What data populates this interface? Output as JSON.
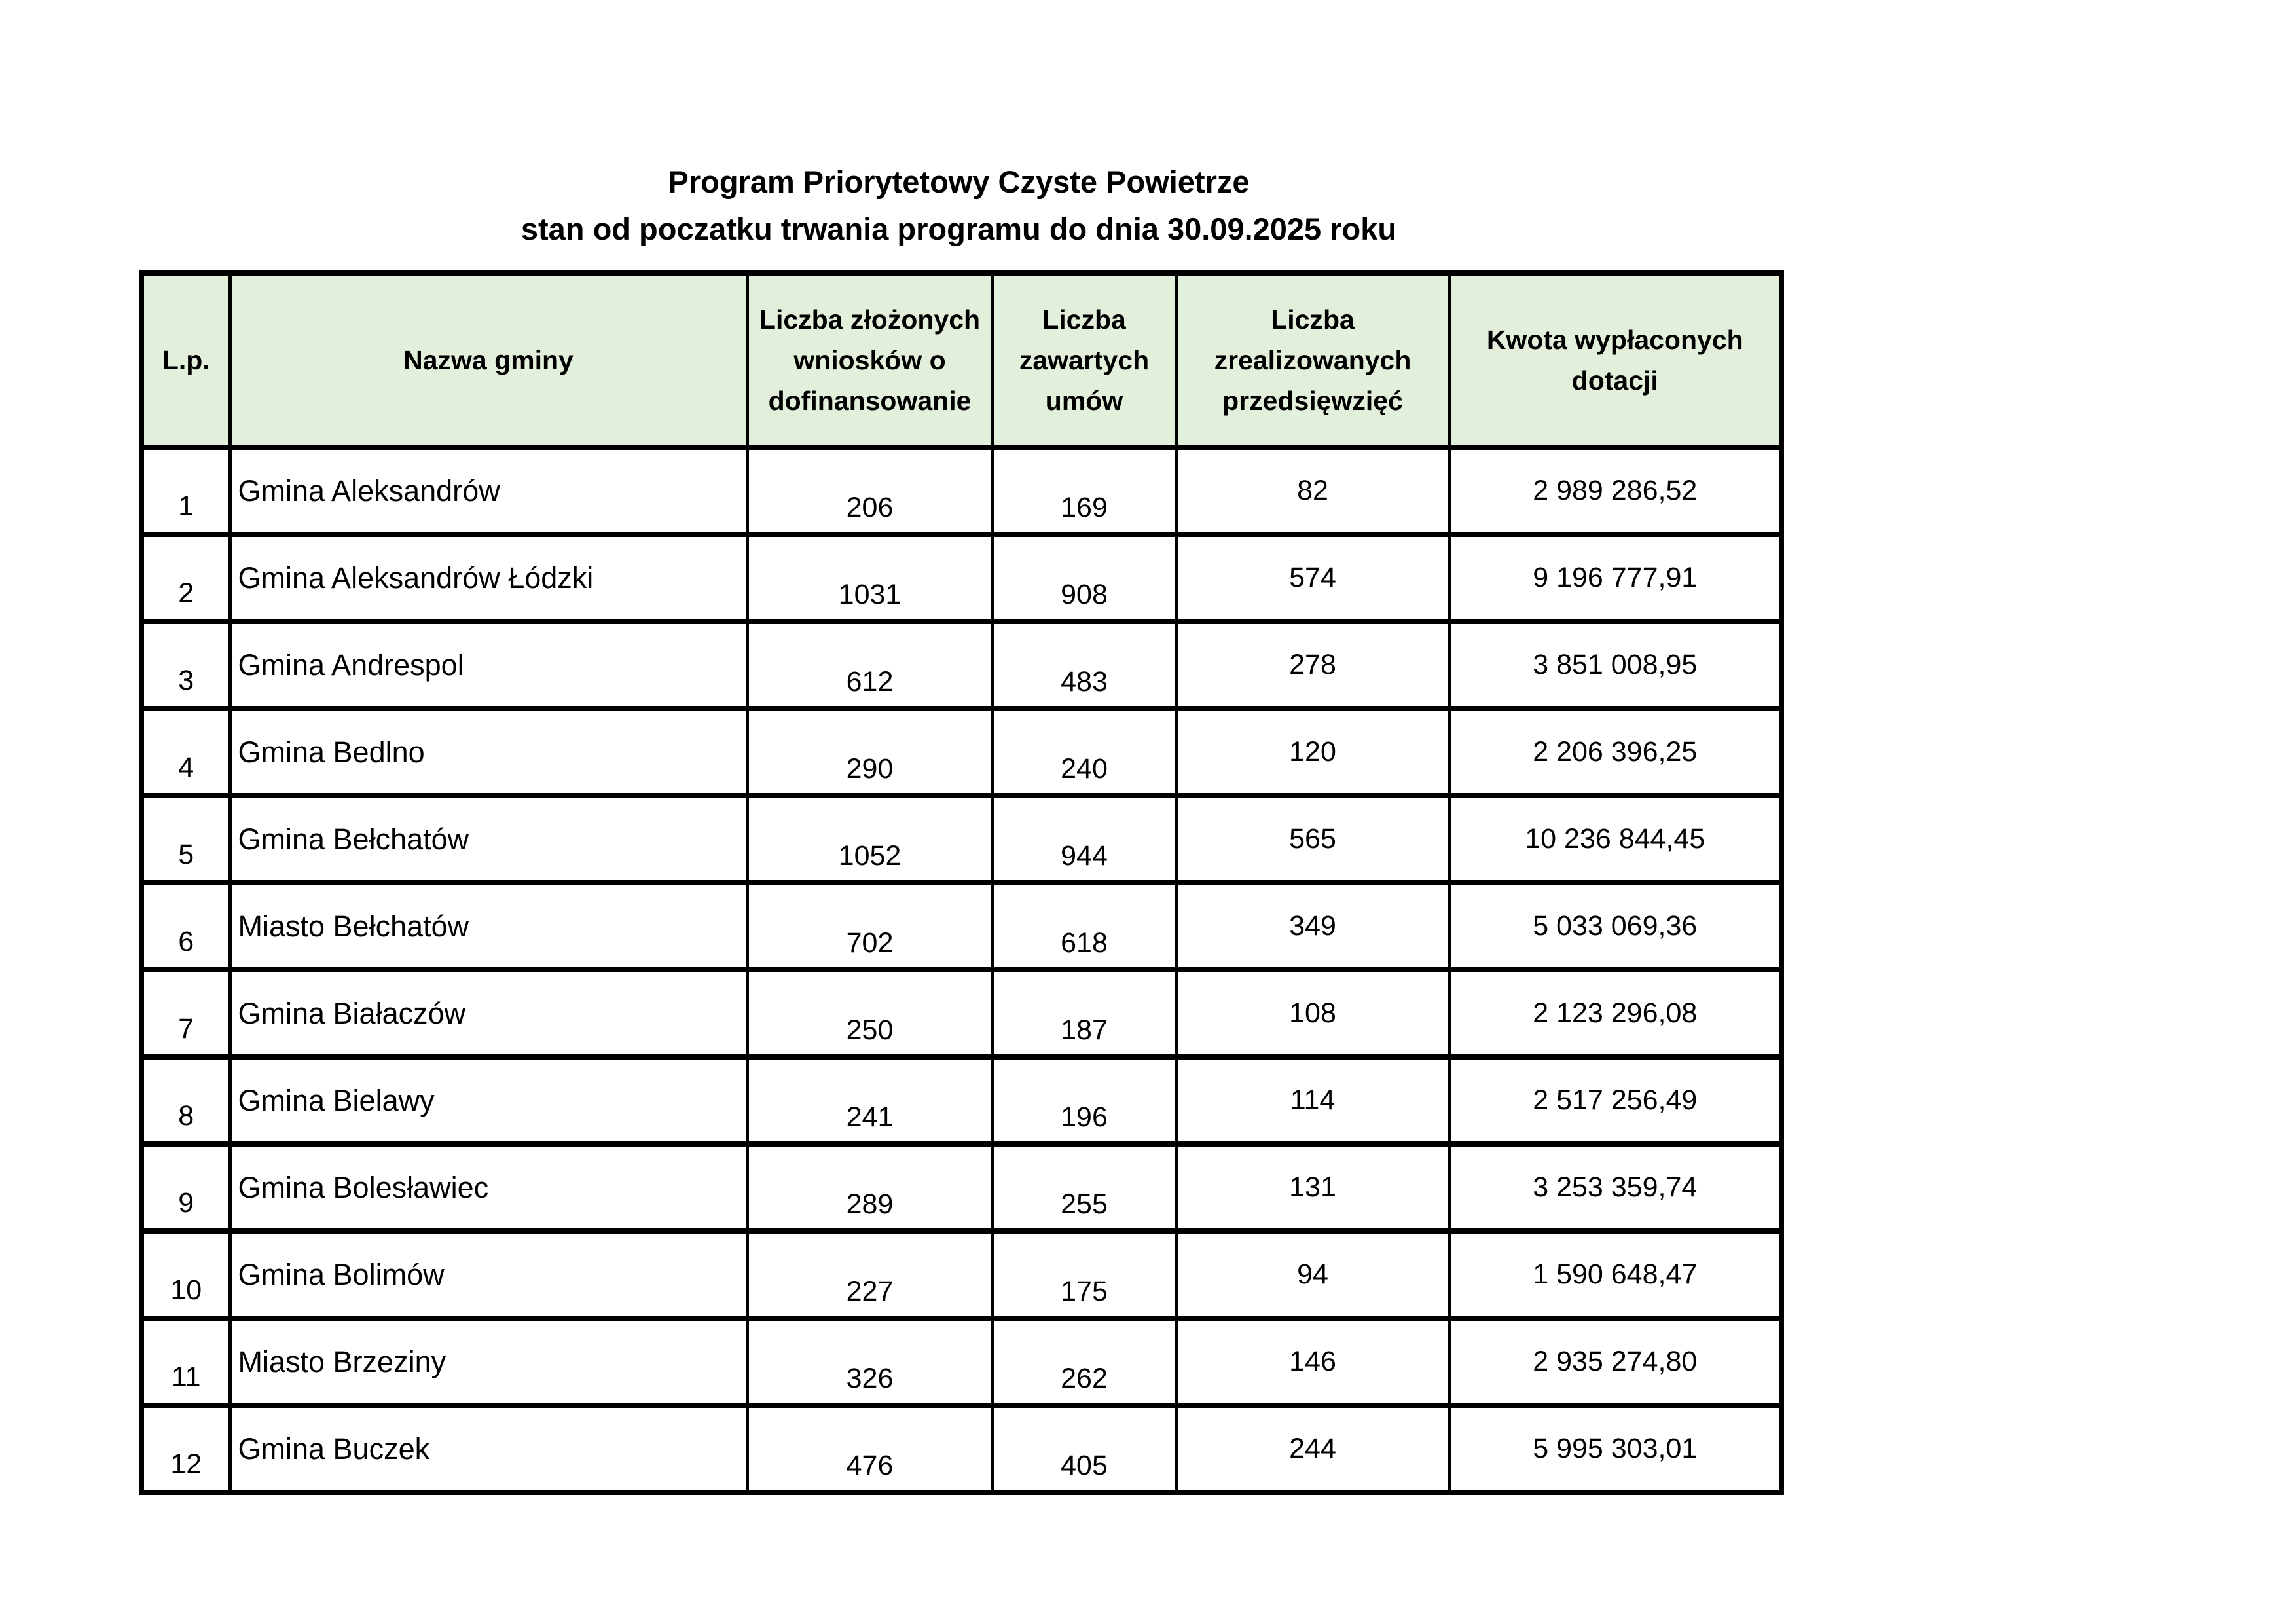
{
  "title": {
    "line1": "Program Priorytetowy Czyste Powietrze",
    "line2": "stan od poczatku trwania programu do dnia 30.09.2025 roku"
  },
  "colors": {
    "header_bg": "#e2efda",
    "border": "#000000"
  },
  "table": {
    "headers": [
      "L.p.",
      "Nazwa gminy",
      "Liczba złożonych wniosków o dofinansowanie",
      "Liczba zawartych umów",
      "Liczba zrealizowanych przedsięwzięć",
      "Kwota wypłaconych dotacji"
    ],
    "rows": [
      {
        "lp": "1",
        "name": "Gmina Aleksandrów",
        "applications": "206",
        "contracts": "169",
        "completed": "82",
        "amount": "2 989 286,52"
      },
      {
        "lp": "2",
        "name": "Gmina Aleksandrów Łódzki",
        "applications": "1031",
        "contracts": "908",
        "completed": "574",
        "amount": "9 196 777,91"
      },
      {
        "lp": "3",
        "name": "Gmina Andrespol",
        "applications": "612",
        "contracts": "483",
        "completed": "278",
        "amount": "3 851 008,95"
      },
      {
        "lp": "4",
        "name": "Gmina Bedlno",
        "applications": "290",
        "contracts": "240",
        "completed": "120",
        "amount": "2 206 396,25"
      },
      {
        "lp": "5",
        "name": "Gmina Bełchatów",
        "applications": "1052",
        "contracts": "944",
        "completed": "565",
        "amount": "10 236 844,45"
      },
      {
        "lp": "6",
        "name": "Miasto Bełchatów",
        "applications": "702",
        "contracts": "618",
        "completed": "349",
        "amount": "5 033 069,36"
      },
      {
        "lp": "7",
        "name": "Gmina Białaczów",
        "applications": "250",
        "contracts": "187",
        "completed": "108",
        "amount": "2 123 296,08"
      },
      {
        "lp": "8",
        "name": "Gmina Bielawy",
        "applications": "241",
        "contracts": "196",
        "completed": "114",
        "amount": "2 517 256,49"
      },
      {
        "lp": "9",
        "name": "Gmina Bolesławiec",
        "applications": "289",
        "contracts": "255",
        "completed": "131",
        "amount": "3 253 359,74"
      },
      {
        "lp": "10",
        "name": "Gmina Bolimów",
        "applications": "227",
        "contracts": "175",
        "completed": "94",
        "amount": "1 590 648,47"
      },
      {
        "lp": "11",
        "name": "Miasto Brzeziny",
        "applications": "326",
        "contracts": "262",
        "completed": "146",
        "amount": "2 935 274,80"
      },
      {
        "lp": "12",
        "name": "Gmina Buczek",
        "applications": "476",
        "contracts": "405",
        "completed": "244",
        "amount": "5 995 303,01"
      }
    ]
  }
}
